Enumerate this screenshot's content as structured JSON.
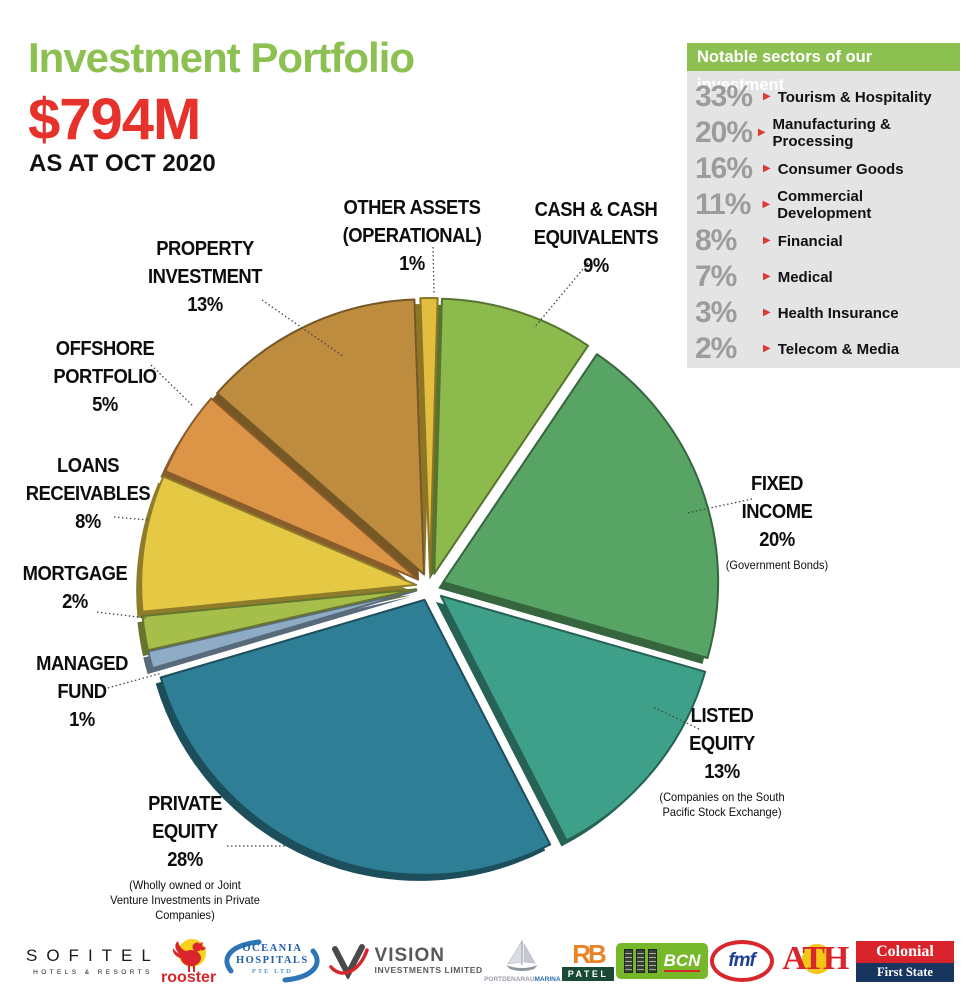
{
  "header": {
    "title": "Investment Portfolio",
    "amount": "$794M",
    "as_at": "AS AT OCT 2020"
  },
  "sectors_panel": {
    "title": "Notable sectors of our investment",
    "rows": [
      {
        "pct": "33%",
        "label": "Tourism & Hospitality"
      },
      {
        "pct": "20%",
        "label": "Manufacturing & Processing"
      },
      {
        "pct": "16%",
        "label": "Consumer Goods"
      },
      {
        "pct": "11%",
        "label": "Commercial Development"
      },
      {
        "pct": "8%",
        "label": "Financial"
      },
      {
        "pct": "7%",
        "label": "Medical"
      },
      {
        "pct": "3%",
        "label": "Health Insurance"
      },
      {
        "pct": "2%",
        "label": "Telecom & Media"
      }
    ]
  },
  "chart_data": {
    "type": "pie",
    "title": "Investment Portfolio",
    "total_label": "$794M",
    "as_at": "AS AT OCT 2020",
    "direction": "clockwise",
    "start_angle_deg": -2,
    "slices": [
      {
        "id": "other_assets",
        "label_lines": [
          "OTHER ASSETS",
          "(OPERATIONAL)"
        ],
        "pct": "1%",
        "value": 1,
        "color": "#E2BE3E"
      },
      {
        "id": "cash",
        "label_lines": [
          "CASH & CASH",
          "EQUIVALENTS"
        ],
        "pct": "9%",
        "value": 9,
        "color": "#8CBA4C"
      },
      {
        "id": "fixed_income",
        "label_lines": [
          "FIXED",
          "INCOME"
        ],
        "pct": "20%",
        "value": 20,
        "color": "#57A464",
        "caption": "(Government Bonds)"
      },
      {
        "id": "listed_equity",
        "label_lines": [
          "LISTED",
          "EQUITY"
        ],
        "pct": "13%",
        "value": 13,
        "color": "#3EA089",
        "caption": "(Companies on the South Pacific Stock Exchange)"
      },
      {
        "id": "private_equity",
        "label_lines": [
          "PRIVATE",
          "EQUITY"
        ],
        "pct": "28%",
        "value": 28,
        "color": "#2E7E95",
        "caption": "(Wholly owned or Joint Venture Investments in Private Companies)"
      },
      {
        "id": "managed_fund",
        "label_lines": [
          "MANAGED",
          "FUND"
        ],
        "pct": "1%",
        "value": 1,
        "color": "#8FACC6"
      },
      {
        "id": "mortgage",
        "label_lines": [
          "MORTGAGE"
        ],
        "pct": "2%",
        "value": 2,
        "color": "#A6BF4B"
      },
      {
        "id": "loans",
        "label_lines": [
          "LOANS",
          "RECEIVABLES"
        ],
        "pct": "8%",
        "value": 8,
        "color": "#E5C843"
      },
      {
        "id": "offshore",
        "label_lines": [
          "OFFSHORE",
          "PORTFOLIO"
        ],
        "pct": "5%",
        "value": 5,
        "color": "#DC9546"
      },
      {
        "id": "property",
        "label_lines": [
          "PROPERTY",
          "INVESTMENT"
        ],
        "pct": "13%",
        "value": 13,
        "color": "#BE8C3E"
      }
    ]
  },
  "logos": {
    "sofitel": {
      "line1": "SOFITEL",
      "line2": "HOTELS & RESORTS"
    },
    "rooster": {
      "text": "rooster"
    },
    "oceania": {
      "line1": "OCEANIA",
      "line2": "HOSPITALS",
      "line3": "PTE LTD"
    },
    "vision": {
      "line1": "VISION",
      "line2": "INVESTMENTS LIMITED"
    },
    "port": {
      "part1": "PORTDENARAU",
      "part2": "MARINA"
    },
    "patel": {
      "mono": "RB",
      "bar": "PATEL"
    },
    "bcn": {
      "text": "BCN"
    },
    "fmf": {
      "text": "fmf"
    },
    "ath": {
      "text": "ATH"
    },
    "colonial": {
      "line1": "Colonial",
      "line2": "First State"
    }
  }
}
